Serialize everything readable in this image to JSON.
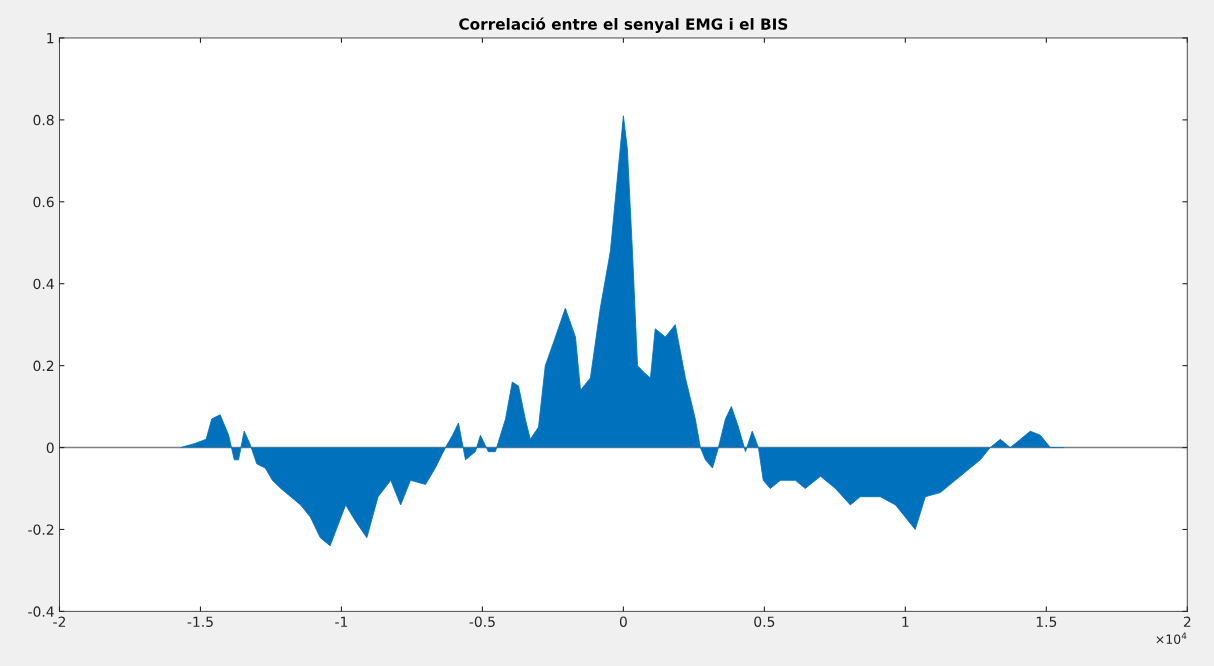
{
  "chart_data": {
    "type": "area",
    "title": "Correlació entre el senyal EMG i el BIS",
    "x": [
      -1.57,
      -1.52,
      -1.48,
      -1.46,
      -1.43,
      -1.4,
      -1.38,
      -1.365,
      -1.345,
      -1.325,
      -1.3,
      -1.27,
      -1.245,
      -1.215,
      -1.18,
      -1.145,
      -1.11,
      -1.075,
      -1.04,
      -0.985,
      -0.95,
      -0.91,
      -0.87,
      -0.825,
      -0.79,
      -0.755,
      -0.702,
      -0.667,
      -0.631,
      -0.606,
      -0.585,
      -0.56,
      -0.525,
      -0.507,
      -0.479,
      -0.454,
      -0.418,
      -0.394,
      -0.372,
      -0.348,
      -0.33,
      -0.301,
      -0.277,
      -0.241,
      -0.206,
      -0.17,
      -0.152,
      -0.117,
      -0.082,
      -0.046,
      -0.028,
      0,
      0.014,
      0.032,
      0.05,
      0.078,
      0.096,
      0.113,
      0.149,
      0.184,
      0.22,
      0.255,
      0.273,
      0.291,
      0.316,
      0.337,
      0.362,
      0.383,
      0.408,
      0.433,
      0.457,
      0.479,
      0.496,
      0.521,
      0.557,
      0.61,
      0.645,
      0.699,
      0.752,
      0.805,
      0.84,
      0.911,
      0.965,
      1.0,
      1.035,
      1.071,
      1.124,
      1.177,
      1.23,
      1.266,
      1.301,
      1.337,
      1.372,
      1.408,
      1.443,
      1.479,
      1.514,
      1.56
    ],
    "series": [
      {
        "color": "#0072bd",
        "values": [
          0.0,
          0.01,
          0.02,
          0.07,
          0.08,
          0.03,
          -0.03,
          -0.03,
          0.04,
          0.01,
          -0.04,
          -0.05,
          -0.08,
          -0.1,
          -0.12,
          -0.14,
          -0.17,
          -0.22,
          -0.24,
          -0.14,
          -0.18,
          -0.22,
          -0.12,
          -0.08,
          -0.14,
          -0.08,
          -0.09,
          -0.05,
          0.0,
          0.03,
          0.06,
          -0.03,
          -0.01,
          0.03,
          -0.01,
          -0.01,
          0.07,
          0.16,
          0.15,
          0.07,
          0.02,
          0.05,
          0.2,
          0.27,
          0.34,
          0.27,
          0.14,
          0.17,
          0.34,
          0.48,
          0.61,
          0.81,
          0.73,
          0.48,
          0.2,
          0.18,
          0.17,
          0.29,
          0.27,
          0.3,
          0.17,
          0.07,
          0.0,
          -0.03,
          -0.05,
          0.0,
          0.07,
          0.1,
          0.05,
          -0.01,
          0.04,
          0.0,
          -0.08,
          -0.1,
          -0.08,
          -0.08,
          -0.1,
          -0.07,
          -0.1,
          -0.14,
          -0.12,
          -0.12,
          -0.14,
          -0.17,
          -0.2,
          -0.12,
          -0.11,
          -0.08,
          -0.05,
          -0.03,
          0.0,
          0.02,
          0.0,
          0.02,
          0.04,
          0.03,
          0.0,
          0.0
        ]
      }
    ],
    "xlim": [
      -2,
      2
    ],
    "xticks": [
      -2,
      -1.5,
      -1,
      -0.5,
      0,
      0.5,
      1,
      1.5,
      2
    ],
    "ylim": [
      -0.4,
      1
    ],
    "yticks": [
      -0.4,
      -0.2,
      0,
      0.2,
      0.4,
      0.6,
      0.8,
      1
    ],
    "ref_lines": [
      {
        "axis": "y",
        "value": 0,
        "color": "#808080"
      }
    ],
    "annotations": [
      "×10$^{4}$"
    ],
    "grid": false
  }
}
